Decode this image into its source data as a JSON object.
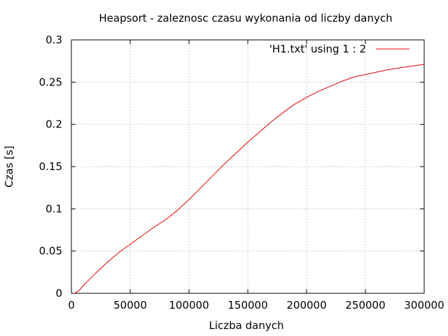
{
  "chart_data": {
    "type": "line",
    "title": "Heapsort - zaleznosc czasu wykonania od liczby danych",
    "xlabel": "Liczba danych",
    "ylabel": "Czas [s]",
    "xlim": [
      0,
      300000
    ],
    "ylim": [
      0,
      0.3
    ],
    "xticks": [
      0,
      50000,
      100000,
      150000,
      200000,
      250000,
      300000
    ],
    "xtick_labels": [
      "0",
      "50000",
      "100000",
      "150000",
      "200000",
      "250000",
      "300000"
    ],
    "yticks": [
      0,
      0.05,
      0.1,
      0.15,
      0.2,
      0.25,
      0.3
    ],
    "ytick_labels": [
      "0",
      "0.05",
      "0.1",
      "0.15",
      "0.2",
      "0.25",
      "0.3"
    ],
    "grid": true,
    "legend_position": "top-right",
    "series": [
      {
        "name": "'H1.txt' using 1 : 2",
        "color": "#e00000",
        "x": [
          3000,
          7000,
          10000,
          15000,
          20000,
          30000,
          40000,
          50000,
          60000,
          70000,
          80000,
          90000,
          100000,
          110000,
          120000,
          130000,
          140000,
          150000,
          160000,
          170000,
          180000,
          190000,
          200000,
          210000,
          220000,
          230000,
          240000,
          250000,
          260000,
          270000,
          280000,
          290000,
          300000
        ],
        "y": [
          0.0,
          0.004,
          0.009,
          0.016,
          0.023,
          0.036,
          0.048,
          0.058,
          0.068,
          0.078,
          0.087,
          0.098,
          0.111,
          0.125,
          0.139,
          0.153,
          0.166,
          0.179,
          0.191,
          0.203,
          0.214,
          0.224,
          0.232,
          0.239,
          0.245,
          0.251,
          0.256,
          0.259,
          0.262,
          0.265,
          0.267,
          0.269,
          0.271
        ]
      }
    ]
  }
}
